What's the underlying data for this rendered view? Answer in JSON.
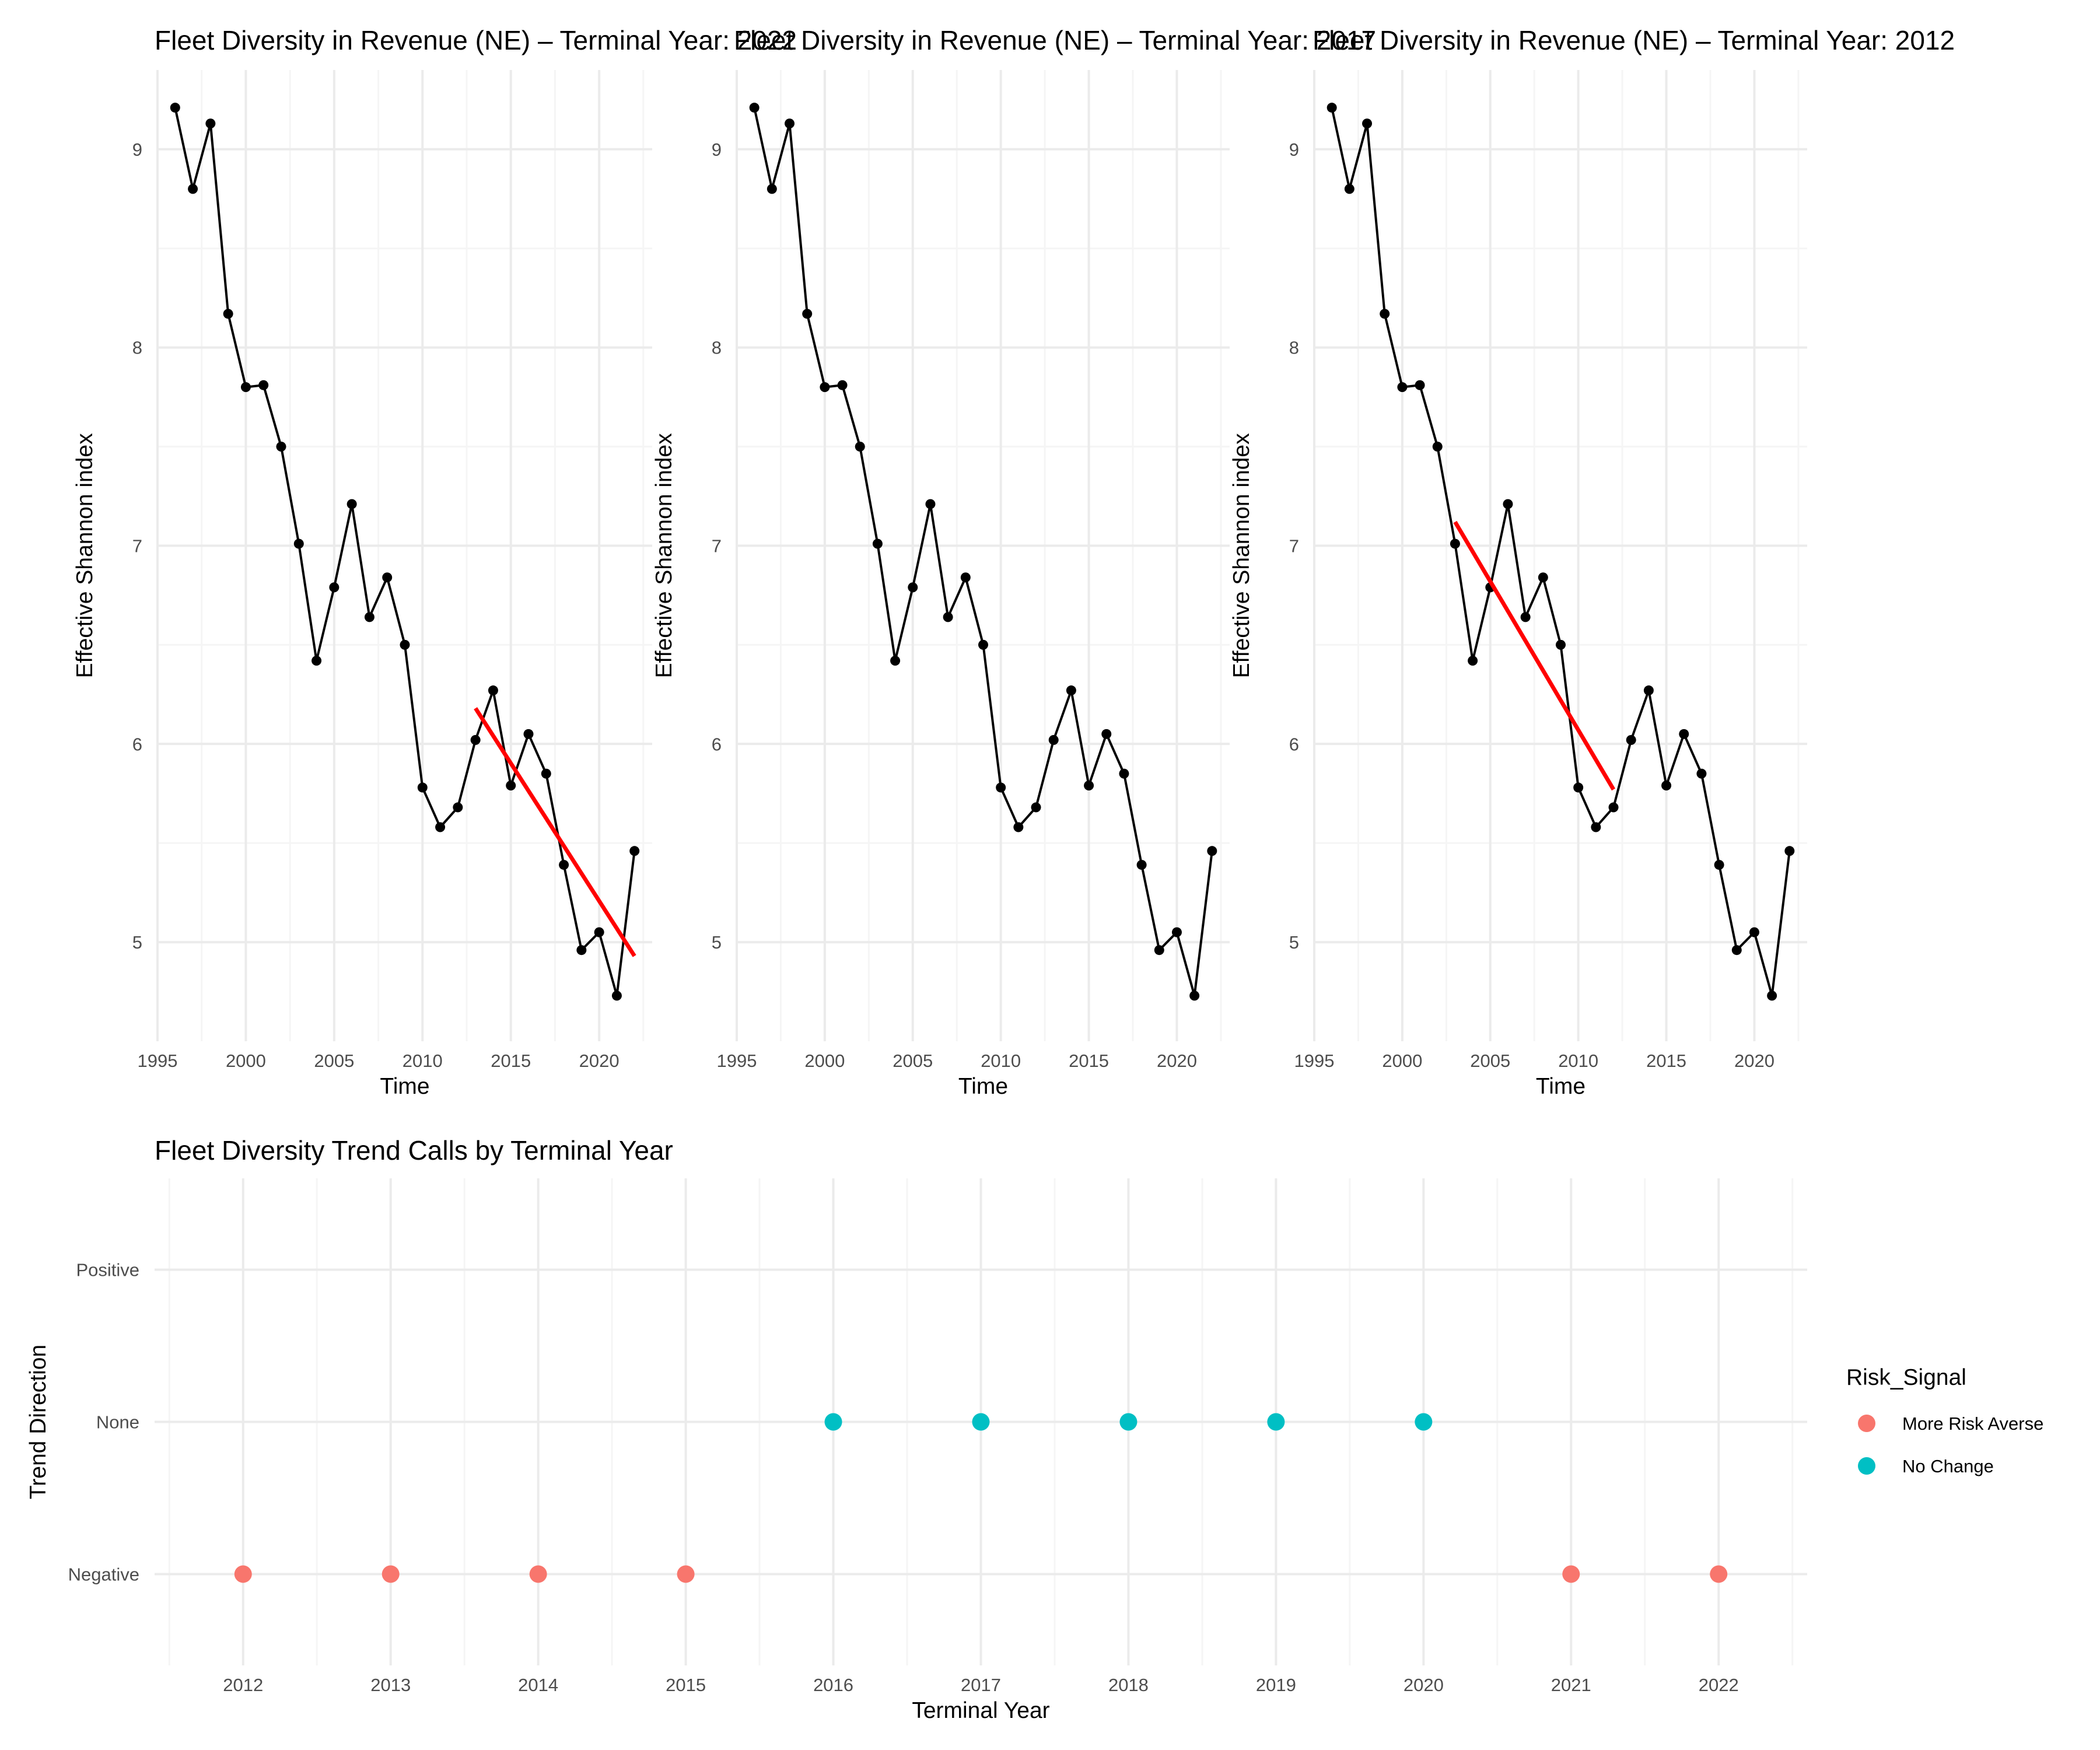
{
  "figure": {
    "background": "#ffffff"
  },
  "colors": {
    "grid_major": "#ebebeb",
    "grid_minor": "#f5f5f5",
    "tick_text": "#4d4d4d",
    "axis_title": "#000000",
    "series_line": "#000000",
    "trend_line": "#ff0000",
    "more_risk_averse": "#f8766d",
    "no_change": "#00bfc4"
  },
  "chart_data": [
    {
      "type": "line",
      "title": "Fleet Diversity in Revenue (NE) – Terminal Year: 2022",
      "xlabel": "Time",
      "ylabel": "Effective Shannon index",
      "xlim": [
        1995,
        2023
      ],
      "ylim": [
        4.5,
        9.4
      ],
      "x_ticks": [
        1995,
        2000,
        2005,
        2010,
        2015,
        2020
      ],
      "y_ticks": [
        5,
        6,
        7,
        8,
        9
      ],
      "grid": true,
      "x": [
        1996,
        1997,
        1998,
        1999,
        2000,
        2001,
        2002,
        2003,
        2004,
        2005,
        2006,
        2007,
        2008,
        2009,
        2010,
        2011,
        2012,
        2013,
        2014,
        2015,
        2016,
        2017,
        2018,
        2019,
        2020,
        2021,
        2022
      ],
      "y": [
        9.21,
        8.8,
        9.13,
        8.17,
        7.8,
        7.81,
        7.5,
        7.01,
        6.42,
        6.79,
        7.21,
        6.64,
        6.84,
        6.5,
        5.78,
        5.58,
        5.68,
        6.02,
        6.27,
        5.79,
        6.05,
        5.85,
        5.39,
        4.96,
        5.05,
        4.73,
        5.46
      ],
      "trend": {
        "x": [
          2013,
          2022
        ],
        "y": [
          6.18,
          4.93
        ]
      }
    },
    {
      "type": "line",
      "title": "Fleet Diversity in Revenue (NE) – Terminal Year: 2017",
      "xlabel": "Time",
      "ylabel": "Effective Shannon index",
      "xlim": [
        1995,
        2023
      ],
      "ylim": [
        4.5,
        9.4
      ],
      "x_ticks": [
        1995,
        2000,
        2005,
        2010,
        2015,
        2020
      ],
      "y_ticks": [
        5,
        6,
        7,
        8,
        9
      ],
      "grid": true,
      "x": [
        1996,
        1997,
        1998,
        1999,
        2000,
        2001,
        2002,
        2003,
        2004,
        2005,
        2006,
        2007,
        2008,
        2009,
        2010,
        2011,
        2012,
        2013,
        2014,
        2015,
        2016,
        2017,
        2018,
        2019,
        2020,
        2021,
        2022
      ],
      "y": [
        9.21,
        8.8,
        9.13,
        8.17,
        7.8,
        7.81,
        7.5,
        7.01,
        6.42,
        6.79,
        7.21,
        6.64,
        6.84,
        6.5,
        5.78,
        5.58,
        5.68,
        6.02,
        6.27,
        5.79,
        6.05,
        5.85,
        5.39,
        4.96,
        5.05,
        4.73,
        5.46
      ]
    },
    {
      "type": "line",
      "title": "Fleet Diversity in Revenue (NE) – Terminal Year: 2012",
      "xlabel": "Time",
      "ylabel": "Effective Shannon index",
      "xlim": [
        1995,
        2023
      ],
      "ylim": [
        4.5,
        9.4
      ],
      "x_ticks": [
        1995,
        2000,
        2005,
        2010,
        2015,
        2020
      ],
      "y_ticks": [
        5,
        6,
        7,
        8,
        9
      ],
      "grid": true,
      "x": [
        1996,
        1997,
        1998,
        1999,
        2000,
        2001,
        2002,
        2003,
        2004,
        2005,
        2006,
        2007,
        2008,
        2009,
        2010,
        2011,
        2012,
        2013,
        2014,
        2015,
        2016,
        2017,
        2018,
        2019,
        2020,
        2021,
        2022
      ],
      "y": [
        9.21,
        8.8,
        9.13,
        8.17,
        7.8,
        7.81,
        7.5,
        7.01,
        6.42,
        6.79,
        7.21,
        6.64,
        6.84,
        6.5,
        5.78,
        5.58,
        5.68,
        6.02,
        6.27,
        5.79,
        6.05,
        5.85,
        5.39,
        4.96,
        5.05,
        4.73,
        5.46
      ],
      "trend": {
        "x": [
          2003,
          2012
        ],
        "y": [
          7.12,
          5.77
        ]
      }
    },
    {
      "type": "scatter",
      "title": "Fleet Diversity Trend Calls by Terminal Year",
      "xlabel": "Terminal Year",
      "ylabel": "Trend Direction",
      "categories_x": [
        2012,
        2013,
        2014,
        2015,
        2016,
        2017,
        2018,
        2019,
        2020,
        2021,
        2022
      ],
      "categories_y": [
        "Negative",
        "None",
        "Positive"
      ],
      "grid": true,
      "legend": {
        "title": "Risk_Signal",
        "placement": "right",
        "entries": [
          "More Risk Averse",
          "No Change"
        ]
      },
      "points": [
        {
          "x": 2012,
          "y": "Negative",
          "signal": "More Risk Averse"
        },
        {
          "x": 2013,
          "y": "Negative",
          "signal": "More Risk Averse"
        },
        {
          "x": 2014,
          "y": "Negative",
          "signal": "More Risk Averse"
        },
        {
          "x": 2015,
          "y": "Negative",
          "signal": "More Risk Averse"
        },
        {
          "x": 2016,
          "y": "None",
          "signal": "No Change"
        },
        {
          "x": 2017,
          "y": "None",
          "signal": "No Change"
        },
        {
          "x": 2018,
          "y": "None",
          "signal": "No Change"
        },
        {
          "x": 2019,
          "y": "None",
          "signal": "No Change"
        },
        {
          "x": 2020,
          "y": "None",
          "signal": "No Change"
        },
        {
          "x": 2021,
          "y": "Negative",
          "signal": "More Risk Averse"
        },
        {
          "x": 2022,
          "y": "Negative",
          "signal": "More Risk Averse"
        }
      ]
    }
  ]
}
